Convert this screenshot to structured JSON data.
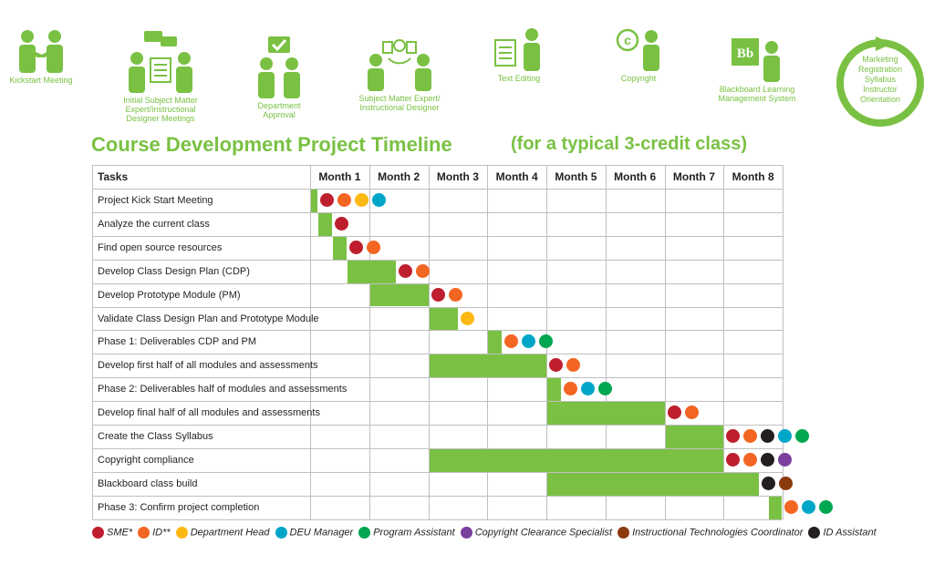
{
  "icons": [
    {
      "label": "Kickstart Meeting",
      "icon": "handshake-people-icon"
    },
    {
      "label": "Initial Subject Matter Expert/Instructional Designer Meetings",
      "icon": "meeting-chat-icon"
    },
    {
      "label": "Department Approval",
      "icon": "approval-check-icon"
    },
    {
      "label": "Subject Matter Expert/ Instructional Designer",
      "icon": "collaboration-idea-icon"
    },
    {
      "label": "Text Editing",
      "icon": "text-editing-icon"
    },
    {
      "label": "Copyright",
      "icon": "copyright-person-icon"
    },
    {
      "label": "Blackboard Learning Management System",
      "icon": "blackboard-bb-icon"
    }
  ],
  "cycle": {
    "lines": [
      "Marketing",
      "Registration",
      "Syllabus",
      "Instructor",
      "Orientation"
    ]
  },
  "title": "Course Development Project Timeline",
  "subtitle": "(for a typical 3-credit class)",
  "colors": {
    "green": "#7ac143",
    "sme": "#be1e2d",
    "id": "#f26522",
    "dept_head": "#fdb913",
    "deu_manager": "#00a6c8",
    "program_assistant": "#00a651",
    "copyright_specialist": "#7b3f9e",
    "itc": "#8b3a0e",
    "id_assistant": "#231f20"
  },
  "table": {
    "tasks_header": "Tasks",
    "months": [
      "Month 1",
      "Month 2",
      "Month 3",
      "Month 4",
      "Month 5",
      "Month 6",
      "Month 7",
      "Month 8"
    ],
    "rows": [
      {
        "task": "Project Kick Start Meeting",
        "start": 0.0,
        "end": 0.12,
        "dots": [
          "sme",
          "id",
          "dept_head",
          "deu_manager"
        ]
      },
      {
        "task": "Analyze the current class",
        "start": 0.12,
        "end": 0.37,
        "dots": [
          "sme"
        ]
      },
      {
        "task": "Find open source resources",
        "start": 0.37,
        "end": 0.62,
        "dots": [
          "sme",
          "id"
        ]
      },
      {
        "task": "Develop Class Design Plan (CDP)",
        "start": 0.62,
        "end": 1.45,
        "dots": [
          "sme",
          "id"
        ]
      },
      {
        "task": "Develop Prototype Module (PM)",
        "start": 1.0,
        "end": 2.0,
        "dots": [
          "sme",
          "id"
        ]
      },
      {
        "task": "Validate Class Design Plan and Prototype Module",
        "start": 2.0,
        "end": 2.5,
        "dots": [
          "dept_head"
        ]
      },
      {
        "task": "Phase 1: Deliverables CDP and PM",
        "start": 3.0,
        "end": 3.25,
        "dots": [
          "id",
          "deu_manager",
          "program_assistant"
        ]
      },
      {
        "task": "Develop first half of all modules and assessments",
        "start": 2.0,
        "end": 4.0,
        "dots": [
          "sme",
          "id"
        ]
      },
      {
        "task": "Phase 2: Deliverables half of modules and assessments",
        "start": 4.0,
        "end": 4.25,
        "dots": [
          "id",
          "deu_manager",
          "program_assistant"
        ]
      },
      {
        "task": "Develop final half of all modules and assessments",
        "start": 4.0,
        "end": 6.0,
        "dots": [
          "sme",
          "id"
        ]
      },
      {
        "task": "Create the Class Syllabus",
        "start": 6.0,
        "end": 7.0,
        "dots": [
          "sme",
          "id",
          "id_assistant",
          "deu_manager",
          "program_assistant"
        ]
      },
      {
        "task": "Copyright compliance",
        "start": 2.0,
        "end": 7.0,
        "dots": [
          "sme",
          "id",
          "id_assistant",
          "copyright_specialist"
        ]
      },
      {
        "task": "Blackboard class build",
        "start": 4.0,
        "end": 7.6,
        "dots": [
          "id_assistant",
          "itc"
        ]
      },
      {
        "task": "Phase 3: Confirm project completion",
        "start": 7.75,
        "end": 7.98,
        "dots": [
          "id",
          "deu_manager",
          "program_assistant"
        ]
      }
    ]
  },
  "legend": [
    {
      "key": "sme",
      "label": "SME*"
    },
    {
      "key": "id",
      "label": "ID**"
    },
    {
      "key": "dept_head",
      "label": "Department Head"
    },
    {
      "key": "deu_manager",
      "label": "DEU Manager"
    },
    {
      "key": "program_assistant",
      "label": "Program Assistant"
    },
    {
      "key": "copyright_specialist",
      "label": "Copyright Clearance Specialist"
    },
    {
      "key": "itc",
      "label": "Instructional Technologies Coordinator"
    },
    {
      "key": "id_assistant",
      "label": "ID Assistant"
    }
  ]
}
